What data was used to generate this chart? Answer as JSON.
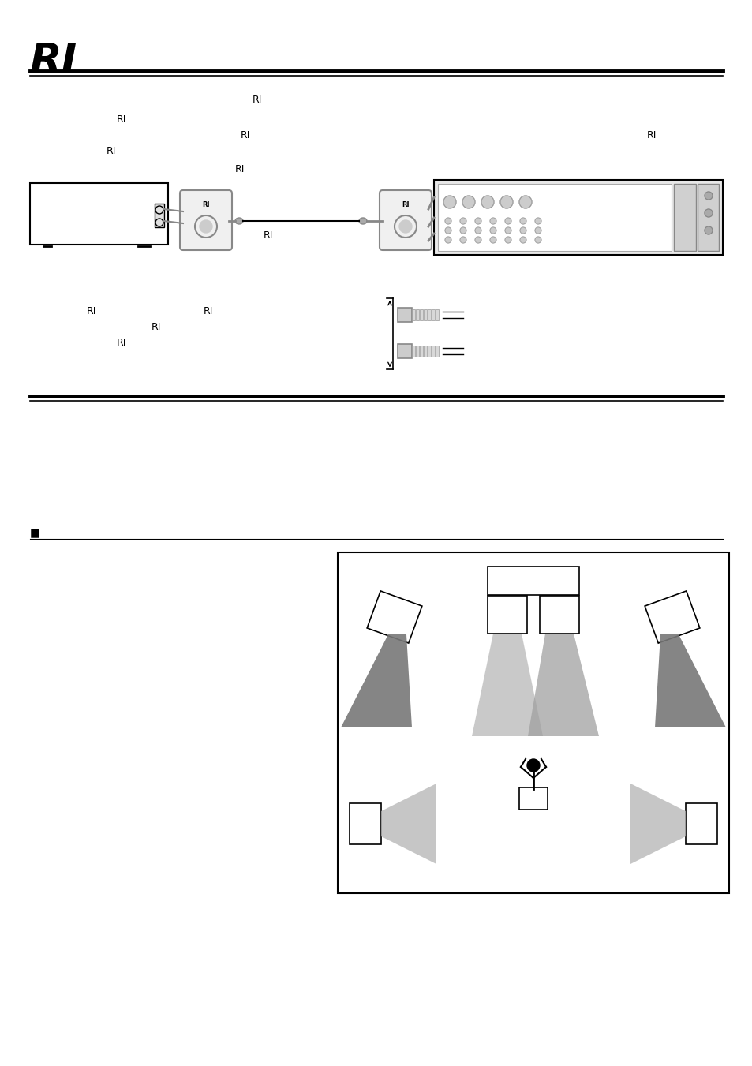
{
  "title": "RI",
  "bg_color": "#ffffff",
  "text_color": "#000000",
  "page_width": 9.54,
  "page_height": 13.51
}
